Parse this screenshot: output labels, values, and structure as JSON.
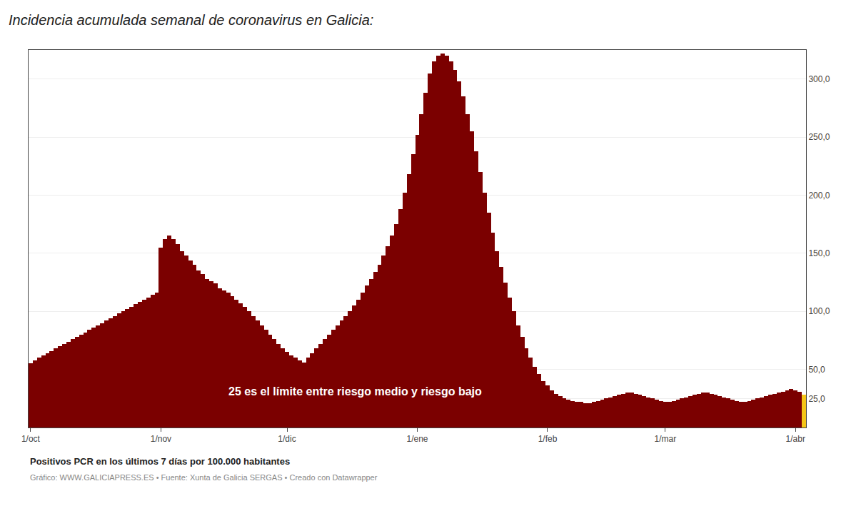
{
  "chart_data": {
    "type": "bar",
    "title": "Incidencia acumulada semanal de coronavirus en Galicia:",
    "ylabel": "Positivos PCR en los últimos 7 días por 100.000 habitantes",
    "annotations": [
      "25 es el límite entre riesgo medio y riesgo bajo",
      "Gráfico: WWW.GALICIAPRESS.ES • Fuente: Xunta de Galicia SERGAS • Creado con Datawrapper"
    ],
    "categories": [
      "1/oct",
      null,
      null,
      null,
      null,
      null,
      null,
      null,
      null,
      null,
      null,
      null,
      null,
      null,
      null,
      null,
      null,
      null,
      null,
      null,
      null,
      null,
      null,
      null,
      null,
      null,
      null,
      null,
      null,
      null,
      null,
      "1/nov",
      null,
      null,
      null,
      null,
      null,
      null,
      null,
      null,
      null,
      null,
      null,
      null,
      null,
      null,
      null,
      null,
      null,
      null,
      null,
      null,
      null,
      null,
      null,
      null,
      null,
      null,
      null,
      null,
      null,
      "1/dic",
      null,
      null,
      null,
      null,
      null,
      null,
      null,
      null,
      null,
      null,
      null,
      null,
      null,
      null,
      null,
      null,
      null,
      null,
      null,
      null,
      null,
      null,
      null,
      null,
      null,
      null,
      null,
      null,
      null,
      null,
      "1/ene",
      null,
      null,
      null,
      null,
      null,
      null,
      null,
      null,
      null,
      null,
      null,
      null,
      null,
      null,
      null,
      null,
      null,
      null,
      null,
      null,
      null,
      null,
      null,
      null,
      null,
      null,
      null,
      null,
      null,
      null,
      "1/feb",
      null,
      null,
      null,
      null,
      null,
      null,
      null,
      null,
      null,
      null,
      null,
      null,
      null,
      null,
      null,
      null,
      null,
      null,
      null,
      null,
      null,
      null,
      null,
      null,
      null,
      null,
      null,
      "1/mar",
      null,
      null,
      null,
      null,
      null,
      null,
      null,
      null,
      null,
      null,
      null,
      null,
      null,
      null,
      null,
      null,
      null,
      null,
      null,
      null,
      null,
      null,
      null,
      null,
      null,
      null,
      null,
      null,
      null,
      null,
      "1/abr",
      null,
      null
    ],
    "values": [
      55,
      58,
      60,
      62,
      64,
      66,
      68,
      70,
      72,
      74,
      76,
      78,
      80,
      82,
      84,
      86,
      88,
      90,
      92,
      94,
      96,
      98,
      100,
      102,
      104,
      106,
      108,
      110,
      112,
      114,
      116,
      155,
      162,
      165,
      162,
      158,
      152,
      148,
      144,
      140,
      135,
      132,
      128,
      126,
      124,
      120,
      118,
      116,
      113,
      110,
      107,
      104,
      100,
      96,
      92,
      88,
      84,
      80,
      76,
      72,
      68,
      65,
      62,
      60,
      58,
      56,
      60,
      64,
      68,
      72,
      76,
      80,
      84,
      88,
      92,
      96,
      100,
      105,
      110,
      116,
      122,
      128,
      134,
      140,
      148,
      156,
      165,
      175,
      188,
      202,
      218,
      235,
      252,
      270,
      288,
      305,
      315,
      320,
      322,
      320,
      315,
      308,
      298,
      285,
      270,
      255,
      238,
      220,
      202,
      185,
      168,
      152,
      138,
      125,
      112,
      100,
      88,
      78,
      68,
      60,
      52,
      46,
      40,
      36,
      32,
      29,
      27,
      25,
      24,
      23,
      22,
      22,
      21,
      21,
      22,
      23,
      24,
      25,
      26,
      27,
      28,
      29,
      30,
      30,
      29,
      28,
      27,
      26,
      25,
      24,
      23,
      22,
      22,
      23,
      24,
      25,
      26,
      27,
      28,
      29,
      30,
      30,
      29,
      28,
      27,
      26,
      25,
      24,
      23,
      22,
      22,
      23,
      24,
      25,
      26,
      27,
      28,
      29,
      30,
      31,
      32,
      33,
      32,
      31,
      28
    ],
    "colors": [
      "#7B0000",
      "#7B0000",
      "#7B0000",
      "#7B0000",
      "#7B0000",
      "#7B0000",
      "#7B0000",
      "#7B0000",
      "#7B0000",
      "#7B0000",
      "#7B0000",
      "#7B0000",
      "#7B0000",
      "#7B0000",
      "#7B0000",
      "#7B0000",
      "#7B0000",
      "#7B0000",
      "#7B0000",
      "#7B0000",
      "#7B0000",
      "#7B0000",
      "#7B0000",
      "#7B0000",
      "#7B0000",
      "#7B0000",
      "#7B0000",
      "#7B0000",
      "#7B0000",
      "#7B0000",
      "#7B0000",
      "#7B0000",
      "#7B0000",
      "#7B0000",
      "#7B0000",
      "#7B0000",
      "#7B0000",
      "#7B0000",
      "#7B0000",
      "#7B0000",
      "#7B0000",
      "#7B0000",
      "#7B0000",
      "#7B0000",
      "#7B0000",
      "#7B0000",
      "#7B0000",
      "#7B0000",
      "#7B0000",
      "#7B0000",
      "#7B0000",
      "#7B0000",
      "#7B0000",
      "#7B0000",
      "#7B0000",
      "#7B0000",
      "#7B0000",
      "#7B0000",
      "#7B0000",
      "#7B0000",
      "#7B0000",
      "#7B0000",
      "#7B0000",
      "#7B0000",
      "#7B0000",
      "#7B0000",
      "#7B0000",
      "#7B0000",
      "#7B0000",
      "#7B0000",
      "#7B0000",
      "#7B0000",
      "#7B0000",
      "#7B0000",
      "#7B0000",
      "#7B0000",
      "#7B0000",
      "#7B0000",
      "#7B0000",
      "#7B0000",
      "#7B0000",
      "#7B0000",
      "#7B0000",
      "#7B0000",
      "#7B0000",
      "#7B0000",
      "#7B0000",
      "#7B0000",
      "#7B0000",
      "#7B0000",
      "#7B0000",
      "#7B0000",
      "#7B0000",
      "#7B0000",
      "#7B0000",
      "#7B0000",
      "#7B0000",
      "#7B0000",
      "#7B0000",
      "#7B0000",
      "#7B0000",
      "#7B0000",
      "#7B0000",
      "#7B0000",
      "#7B0000",
      "#7B0000",
      "#7B0000",
      "#7B0000",
      "#7B0000",
      "#7B0000",
      "#7B0000",
      "#7B0000",
      "#7B0000",
      "#7B0000",
      "#7B0000",
      "#7B0000",
      "#7B0000",
      "#7B0000",
      "#7B0000",
      "#7B0000",
      "#7B0000",
      "#7B0000",
      "#7B0000",
      "#7B0000",
      "#7B0000",
      "#7B0000",
      "#7B0000",
      "#7B0000",
      "#7B0000",
      "#7B0000",
      "#7B0000",
      "#7B0000",
      "#7B0000",
      "#7B0000",
      "#7B0000",
      "#7B0000",
      "#7B0000",
      "#7B0000",
      "#7B0000",
      "#7B0000",
      "#7B0000",
      "#7B0000",
      "#7B0000",
      "#7B0000",
      "#7B0000",
      "#7B0000",
      "#7B0000",
      "#7B0000",
      "#7B0000",
      "#7B0000",
      "#7B0000",
      "#7B0000",
      "#7B0000",
      "#7B0000",
      "#7B0000",
      "#7B0000",
      "#7B0000",
      "#7B0000",
      "#7B0000",
      "#7B0000",
      "#7B0000",
      "#7B0000",
      "#7B0000",
      "#7B0000",
      "#7B0000",
      "#7B0000",
      "#7B0000",
      "#7B0000",
      "#7B0000",
      "#7B0000",
      "#7B0000",
      "#7B0000",
      "#7B0000",
      "#7B0000",
      "#7B0000",
      "#7B0000",
      "#7B0000",
      "#7B0000",
      "#7B0000",
      "#7B0000",
      "#7B0000",
      "#7B0000",
      "#7B0000",
      "#7B0000",
      "#F5C518"
    ],
    "ylim": [
      0,
      325
    ],
    "yticks": [
      {
        "value": 25,
        "label": "25,0"
      },
      {
        "value": 50,
        "label": "50,0"
      },
      {
        "value": 100,
        "label": "100,0"
      },
      {
        "value": 150,
        "label": "150,0"
      },
      {
        "value": 200,
        "label": "200,0"
      },
      {
        "value": 250,
        "label": "250,0"
      },
      {
        "value": 300,
        "label": "300,0"
      }
    ],
    "grid": true
  }
}
